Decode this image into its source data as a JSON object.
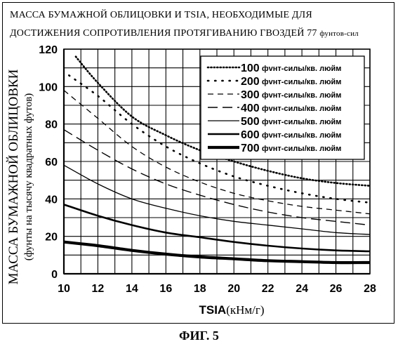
{
  "title_line_1": "МАССА БУМАЖНОЙ ОБЛИЦОВКИ И TSIA, НЕОБХОДИМЫЕ ДЛЯ",
  "title_line_2": "ДОСТИЖЕНИЯ СОПРОТИВЛЕНИЯ ПРОТЯГИВАНИЮ ГВОЗДЕЙ 77",
  "title_line_2_suffix": "фунтов-сил",
  "figure_caption": "ФИГ. 5",
  "chart_data": {
    "type": "line",
    "xlabel_main": "TSIA",
    "xlabel_unit": "(кНм/г)",
    "ylabel_main": "МАССА БУМАЖНОЙ ОБЛИЦОВКИ",
    "ylabel_sub": "(фунты на тысячу квадратных футов)",
    "xlim": [
      10,
      28
    ],
    "ylim": [
      0,
      120
    ],
    "x_ticks": [
      10,
      12,
      14,
      16,
      18,
      20,
      22,
      24,
      26,
      28
    ],
    "y_ticks": [
      0,
      20,
      40,
      60,
      80,
      100,
      120
    ],
    "grid": true,
    "legend_position": "top-right",
    "legend_unit": "фvнт-силы/кв. люйм",
    "series": [
      {
        "name": "100",
        "style": "dotted",
        "x": [
          10.7,
          12,
          14,
          16,
          18,
          20,
          22,
          24,
          26,
          28
        ],
        "y": [
          116,
          102,
          84,
          74,
          66,
          60,
          55,
          51,
          48.5,
          47
        ]
      },
      {
        "name": "200",
        "style": "loose-dotted",
        "x": [
          10.3,
          12,
          14,
          16,
          18,
          20,
          22,
          24,
          26,
          28
        ],
        "y": [
          106,
          95,
          80,
          68,
          59,
          52,
          47,
          43,
          40,
          38
        ]
      },
      {
        "name": "300",
        "style": "dashed",
        "x": [
          10,
          12,
          14,
          16,
          18,
          20,
          22,
          24,
          26,
          28
        ],
        "y": [
          98,
          83,
          68,
          57,
          49,
          43,
          39,
          36,
          34,
          32
        ]
      },
      {
        "name": "400",
        "style": "long-dashed",
        "x": [
          10,
          12,
          14,
          16,
          18,
          20,
          22,
          24,
          26,
          28
        ],
        "y": [
          77,
          66,
          56,
          48,
          42,
          37,
          33,
          30,
          28,
          26
        ]
      },
      {
        "name": "500",
        "style": "solid-thin",
        "x": [
          10,
          12,
          14,
          16,
          18,
          20,
          22,
          24,
          26,
          28
        ],
        "y": [
          58,
          48,
          40,
          35,
          31,
          28,
          26,
          24,
          22,
          21
        ]
      },
      {
        "name": "600",
        "style": "solid-medium",
        "x": [
          10,
          12,
          14,
          16,
          18,
          20,
          22,
          24,
          26,
          28
        ],
        "y": [
          37,
          31,
          26,
          22,
          19.5,
          17,
          15,
          13.5,
          12.5,
          12
        ]
      },
      {
        "name": "700",
        "style": "solid-thick",
        "x": [
          10,
          12,
          14,
          16,
          18,
          20,
          22,
          24,
          26,
          28
        ],
        "y": [
          17,
          15,
          12.5,
          10.5,
          9,
          8,
          7,
          6.5,
          6,
          6
        ]
      }
    ]
  }
}
